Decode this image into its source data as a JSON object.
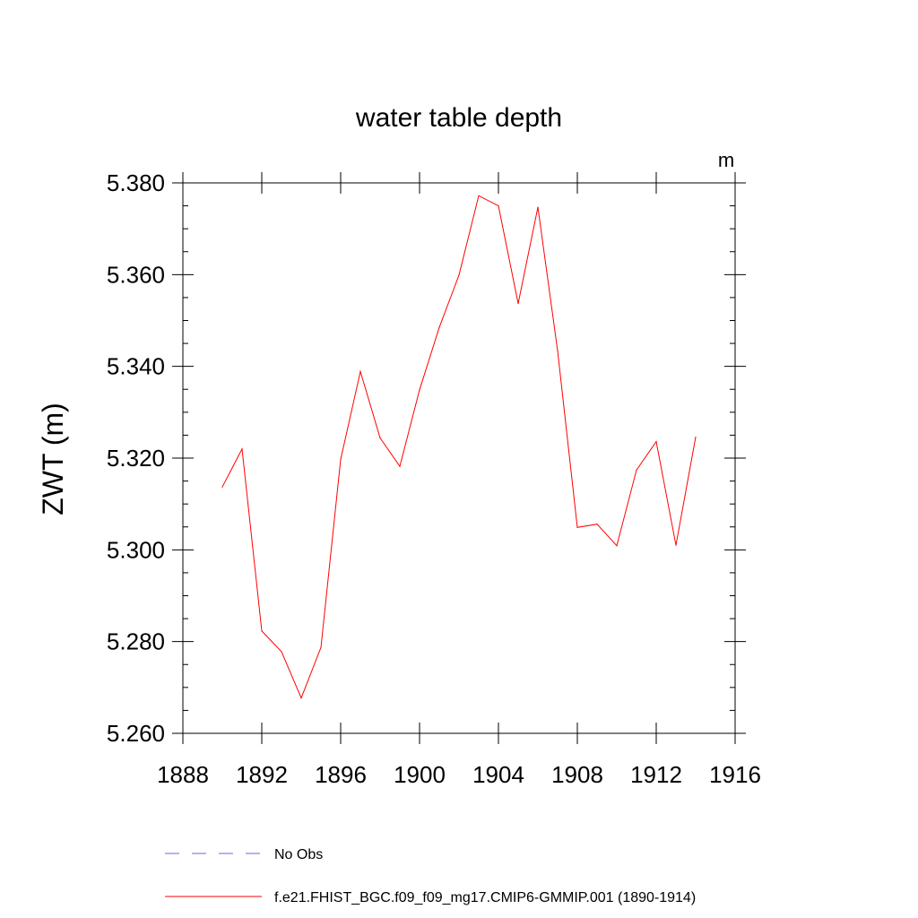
{
  "chart_data": {
    "type": "line",
    "title": "water table depth",
    "units_label": "m",
    "ylabel": "ZWT  (m)",
    "xlabel": "",
    "xlim": [
      1888,
      1916
    ],
    "ylim": [
      5.26,
      5.38
    ],
    "x_ticks": [
      1888,
      1892,
      1896,
      1900,
      1904,
      1908,
      1912,
      1916
    ],
    "y_ticks": [
      "5.260",
      "5.280",
      "5.300",
      "5.320",
      "5.340",
      "5.360",
      "5.380"
    ],
    "grid": false,
    "legend_position": "bottom",
    "series": [
      {
        "name": "f.e21.FHIST_BGC.f09_f09_mg17.CMIP6-GMMIP.001 (1890-1914)",
        "color": "#ff0000",
        "style": "solid",
        "x": [
          1890,
          1891,
          1892,
          1893,
          1894,
          1895,
          1896,
          1897,
          1898,
          1899,
          1900,
          1901,
          1902,
          1903,
          1904,
          1905,
          1906,
          1907,
          1908,
          1909,
          1910,
          1911,
          1912,
          1913,
          1914
        ],
        "y": [
          5.3137,
          5.322,
          5.2823,
          5.2778,
          5.2677,
          5.2787,
          5.3197,
          5.3389,
          5.3244,
          5.3182,
          5.3349,
          5.3485,
          5.3599,
          5.3772,
          5.375,
          5.3537,
          5.3747,
          5.3434,
          5.3049,
          5.3056,
          5.3009,
          5.3174,
          5.3236,
          5.301,
          5.3246
        ]
      }
    ],
    "legend": [
      {
        "label": "No Obs",
        "color": "#6a6ad8",
        "style": "dashed"
      },
      {
        "label": "f.e21.FHIST_BGC.f09_f09_mg17.CMIP6-GMMIP.001 (1890-1914)",
        "color": "#ff0000",
        "style": "solid"
      }
    ]
  }
}
